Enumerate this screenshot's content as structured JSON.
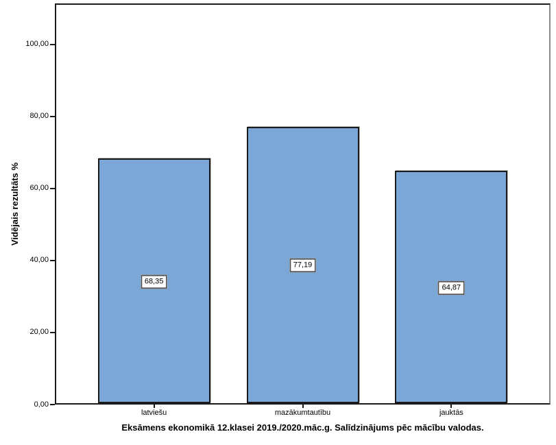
{
  "chart_data": {
    "type": "bar",
    "title": "Eksāmens ekonomikā 12.klasei 2019./2020.māc.g. Salīdzinājums pēc mācību valodas.",
    "ylabel": "Vidējais rezultāts %",
    "xlabel": "",
    "categories": [
      "latviešu",
      "mazākumtautību",
      "jauktās"
    ],
    "values": [
      68.35,
      77.19,
      64.87
    ],
    "value_labels": [
      "68,35",
      "77,19",
      "64,87"
    ],
    "yticks": [
      0,
      20,
      40,
      60,
      80,
      100
    ],
    "ytick_labels": [
      "0,00",
      "20,00",
      "40,00",
      "60,00",
      "80,00",
      "100,00"
    ],
    "ylim": [
      0,
      111.4
    ],
    "grid": false,
    "legend": "none",
    "bar_color": "#7BA7D7",
    "bar_border_color": "#1A1A1A",
    "value_label_box_bg": "#FFFFFF"
  }
}
